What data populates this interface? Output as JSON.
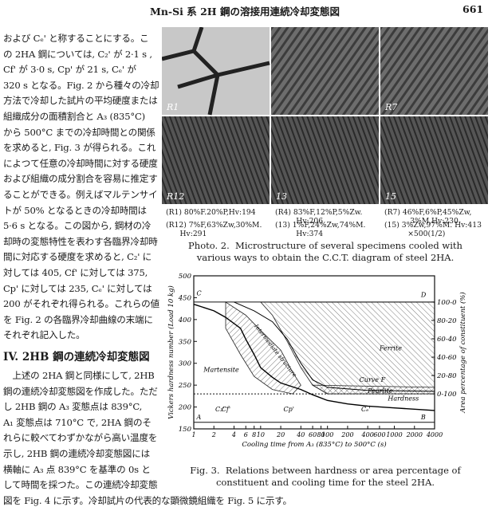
{
  "header": {
    "title": "Mn-Si 系 2H 鋼の溶接用連続冷却変態図",
    "page": "661"
  },
  "left_column": {
    "lines_before": [
      "および Cₑ' と称することにする。こ",
      "の 2HA 鋼については, C₂' が 2·1 s ,",
      "Cf' が 3·0 s, Cp' が 21 s, Cₑ' が",
      "320 s となる。Fig. 2 から種々の冷却",
      "方法で冷却した試片の平均硬度または",
      "組織成分の面積割合と A₃ (835°C)",
      "から 500°C までの冷却時間との関係",
      "を求めると, Fig. 3 が得られる。これ",
      "によつて任意の冷却時間に対する硬度",
      "および組織の成分割合を容易に推定す",
      "ることができる。例えばマルテンサイ",
      "トが 50% となるときの冷却時間は",
      "5·6 s となる。この図から, 鋼材の冷",
      "却時の変態特性を表わす各臨界冷却時",
      "間に対応する硬度を求めると, C₂' に",
      "対しては 405, Cf' に対しては 375,",
      "Cp' に対しては 235, Cₑ' に対しては",
      "200 がそれぞれ得られる。これらの値",
      "を Fig. 2 の各臨界冷却曲線の末端に",
      "それぞれ記入した。"
    ],
    "heading": "IV.  2HB 鋼の連続冷却変態図",
    "lines_after": [
      "　上述の 2HA 鋼と同様にして, 2HB",
      "鋼の連続冷却変態図を作成した。ただ",
      "し 2HB 鋼の A₃ 変態点は 839°C,",
      "A₁ 変態点は 710°C で, 2HA 鋼のそ",
      "れらに較べてわずかながら高い温度を",
      "示し, 2HB 鋼の連続冷却変態図には",
      "横軸に A₃ 点 839°C を基準の 0s と",
      "して時間を採つた。この連続冷却変態",
      "図を Fig. 4 に示す。冷却試片の代表的な顕微鏡組織を Fig. 5 に示す。"
    ]
  },
  "photo": {
    "labels": [
      "R1",
      "",
      "R7",
      "R12",
      "13",
      "15"
    ],
    "captions": [
      "(R1) 80%F.20%P,Hv:194",
      "(R4) 83%F,12%P,5%Zw.\n         Hv:206",
      "(R7) 46%F,6%P,45%Zw,\n           3%M,Hv:230",
      "(R12) 7%F,63%Zw,30%M.\n      Hv:291",
      "(13) 1%F,24%Zw,74%M.\n         Hv:374",
      "(15) 3%Zw,97%M. Hv:413\n          ×500(1/2)"
    ],
    "caption": "Photo. 2.  Microstructure of several specimens cooled with\nvarious ways to obtain the C.C.T. diagram of steel 2HA."
  },
  "figure": {
    "ylabel": "Vickers hardness number (Load 10 kg)",
    "y2label": "Area percentage of constituent (%)",
    "xlabel": "Cooling time from A₃ (835°C) to 500°C (s)",
    "xlim": [
      1,
      4000
    ],
    "ylim": [
      150,
      500
    ],
    "xticks": [
      1,
      2,
      4,
      6,
      8,
      10,
      20,
      40,
      60,
      80,
      100,
      200,
      400,
      600,
      1000,
      2000,
      4000
    ],
    "yticks": [
      150,
      200,
      250,
      300,
      350,
      400,
      450,
      500
    ],
    "y2ticks": [
      {
        "value": 440,
        "label": "100-0"
      },
      {
        "value": 398,
        "label": "80-20"
      },
      {
        "value": 356,
        "label": "60-40"
      },
      {
        "value": 314,
        "label": "40-60"
      },
      {
        "value": 272,
        "label": "20-80"
      },
      {
        "value": 230,
        "label": "0-100"
      }
    ],
    "annotations": [
      "Ferrite",
      "Martensite",
      "Pearlite",
      "Curve F",
      "Hardness",
      "Intermediate structure",
      "C",
      "D",
      "A",
      "B",
      "C₂'",
      "Cf'",
      "Cp'",
      "Cₑ'"
    ],
    "caption": "Fig. 3.  Relations between hardness or area percentage of\nconstituent and cooling time for the steel 2HA."
  }
}
